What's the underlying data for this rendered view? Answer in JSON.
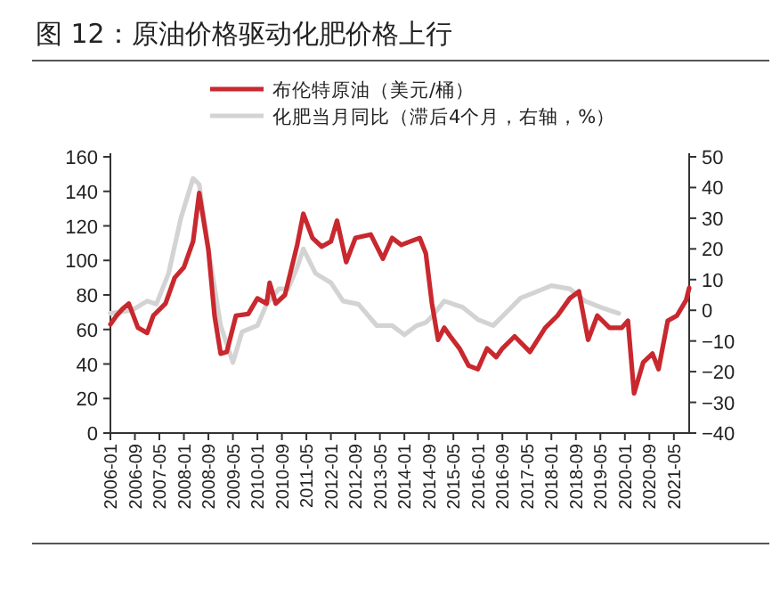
{
  "chart_data": {
    "type": "line",
    "title": "图 12：原油价格驱动化肥价格上行",
    "y2label": null,
    "series": [
      {
        "name": "布伦特原油（美元/桶）",
        "color": "#c8282e",
        "x": [
          "2006-01",
          "2006-03",
          "2006-05",
          "2006-07",
          "2006-10",
          "2007-01",
          "2007-03",
          "2007-07",
          "2007-10",
          "2008-01",
          "2008-04",
          "2008-06",
          "2008-09",
          "2008-11",
          "2009-01",
          "2009-03",
          "2009-06",
          "2009-10",
          "2010-01",
          "2010-04",
          "2010-05",
          "2010-07",
          "2010-10",
          "2011-02",
          "2011-04",
          "2011-07",
          "2011-10",
          "2012-01",
          "2012-03",
          "2012-06",
          "2012-09",
          "2013-02",
          "2013-06",
          "2013-09",
          "2013-12",
          "2014-03",
          "2014-06",
          "2014-08",
          "2014-10",
          "2014-12",
          "2015-02",
          "2015-04",
          "2015-07",
          "2015-10",
          "2016-01",
          "2016-04",
          "2016-07",
          "2016-09",
          "2017-01",
          "2017-06",
          "2017-11",
          "2018-03",
          "2018-07",
          "2018-10",
          "2019-01",
          "2019-04",
          "2019-08",
          "2019-12",
          "2020-02",
          "2020-04",
          "2020-07",
          "2020-10",
          "2020-12",
          "2021-03",
          "2021-06",
          "2021-09",
          "2021-10"
        ],
        "values": [
          63,
          68,
          72,
          75,
          61,
          58,
          68,
          75,
          90,
          96,
          111,
          139,
          106,
          68,
          46,
          47,
          68,
          69,
          78,
          75,
          87,
          75,
          80,
          109,
          127,
          113,
          108,
          111,
          123,
          99,
          113,
          115,
          101,
          113,
          109,
          111,
          113,
          104,
          75,
          54,
          61,
          56,
          49,
          39,
          37,
          49,
          44,
          49,
          56,
          47,
          61,
          68,
          78,
          82,
          54,
          68,
          61,
          61,
          65,
          23,
          41,
          46,
          37,
          65,
          68,
          77,
          84
        ]
      },
      {
        "name": "化肥当月同比（滞后4个月，右轴，%）",
        "color": "#d3d3d3",
        "axis": "y2",
        "x": [
          "2006-01",
          "2006-08",
          "2007-01",
          "2007-04",
          "2007-08",
          "2007-12",
          "2008-04",
          "2008-06",
          "2008-09",
          "2009-01",
          "2009-05",
          "2009-08",
          "2010-01",
          "2010-04",
          "2010-08",
          "2010-11",
          "2011-02",
          "2011-04",
          "2011-08",
          "2012-01",
          "2012-05",
          "2012-10",
          "2013-04",
          "2013-09",
          "2014-01",
          "2014-05",
          "2014-08",
          "2014-10",
          "2015-02",
          "2015-08",
          "2016-01",
          "2016-06",
          "2016-10",
          "2017-03",
          "2017-08",
          "2018-01",
          "2018-07",
          "2018-12",
          "2019-05",
          "2019-11"
        ],
        "values": [
          -1,
          0,
          3,
          2,
          12,
          30,
          43,
          41,
          20,
          -5,
          -17,
          -7,
          -5,
          2,
          7,
          7,
          14,
          20,
          12,
          9,
          3,
          2,
          -5,
          -5,
          -8,
          -5,
          -4,
          -2,
          3,
          1,
          -3,
          -5,
          -1,
          4,
          6,
          8,
          7,
          3,
          1,
          -1
        ]
      }
    ],
    "xlim": [
      "2006-01",
      "2021-10"
    ],
    "xticks": [
      {
        "value": "2006-01",
        "label": "2006-01"
      },
      {
        "value": "2006-09",
        "label": "2006-09"
      },
      {
        "value": "2007-05",
        "label": "2007-05"
      },
      {
        "value": "2008-01",
        "label": "2008-01"
      },
      {
        "value": "2008-09",
        "label": "2008-09"
      },
      {
        "value": "2009-05",
        "label": "2009-05"
      },
      {
        "value": "2010-01",
        "label": "2010-01"
      },
      {
        "value": "2010-09",
        "label": "2010-09"
      },
      {
        "value": "2011-05",
        "label": "2011-05"
      },
      {
        "value": "2012-01",
        "label": "2012-01"
      },
      {
        "value": "2012-09",
        "label": "2012-09"
      },
      {
        "value": "2013-05",
        "label": "2013-05"
      },
      {
        "value": "2014-01",
        "label": "2014-01"
      },
      {
        "value": "2014-09",
        "label": "2014-09"
      },
      {
        "value": "2015-05",
        "label": "2015-05"
      },
      {
        "value": "2016-01",
        "label": "2016-01"
      },
      {
        "value": "2016-09",
        "label": "2016-09"
      },
      {
        "value": "2017-05",
        "label": "2017-05"
      },
      {
        "value": "2018-01",
        "label": "2018-01"
      },
      {
        "value": "2018-09",
        "label": "2018-09"
      },
      {
        "value": "2019-05",
        "label": "2019-05"
      },
      {
        "value": "2020-01",
        "label": "2020-01"
      },
      {
        "value": "2020-09",
        "label": "2020-09"
      },
      {
        "value": "2021-05",
        "label": "2021-05"
      }
    ],
    "ylim": [
      0,
      160
    ],
    "yticks": [
      0,
      20,
      40,
      60,
      80,
      100,
      120,
      140,
      160
    ],
    "y2lim": [
      -40,
      50
    ],
    "y2ticks": [
      -40,
      -30,
      -20,
      -10,
      0,
      10,
      20,
      30,
      40,
      50
    ],
    "legend": "top",
    "grid": false,
    "marker": "none",
    "line_style": "solid"
  }
}
